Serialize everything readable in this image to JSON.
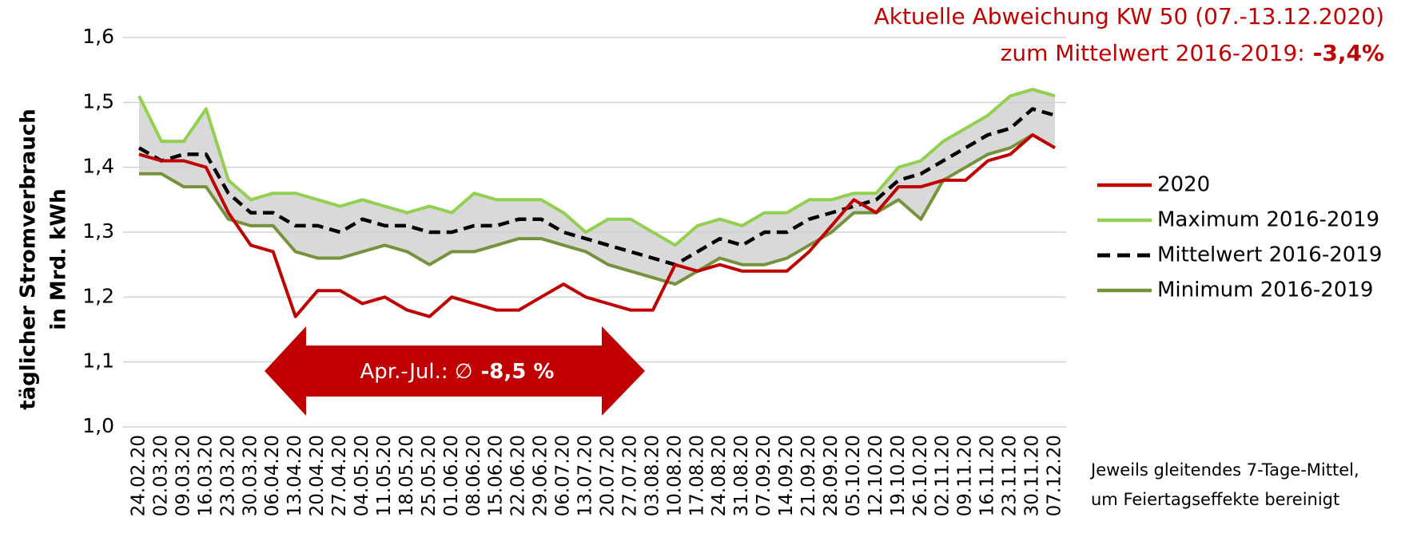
{
  "chart_data": {
    "type": "line",
    "title": [
      "Aktuelle Abweichung KW 50 (07.-13.12.2020)",
      "zum Mittelwert 2016-2019:",
      "-3,4%"
    ],
    "ylabel": [
      "täglicher Stromverbrauch",
      "in Mrd. kWh"
    ],
    "annotation": [
      "Apr.-Jul.: ∅",
      "-8,5 %"
    ],
    "note": [
      "Jeweils gleitendes 7-Tage-Mittel,",
      "um Feiertagseffekte bereinigt"
    ],
    "categories": [
      "24.02.20",
      "02.03.20",
      "09.03.20",
      "16.03.20",
      "23.03.20",
      "30.03.20",
      "06.04.20",
      "13.04.20",
      "20.04.20",
      "27.04.20",
      "04.05.20",
      "11.05.20",
      "18.05.20",
      "25.05.20",
      "01.06.20",
      "08.06.20",
      "15.06.20",
      "22.06.20",
      "29.06.20",
      "06.07.20",
      "13.07.20",
      "20.07.20",
      "27.07.20",
      "03.08.20",
      "10.08.20",
      "17.08.20",
      "24.08.20",
      "31.08.20",
      "07.09.20",
      "14.09.20",
      "21.09.20",
      "28.09.20",
      "05.10.20",
      "12.10.20",
      "19.10.20",
      "26.10.20",
      "02.11.20",
      "09.11.20",
      "16.11.20",
      "23.11.20",
      "30.11.20",
      "07.12.20"
    ],
    "series": [
      {
        "name": "2020",
        "color": "#c00000",
        "values": [
          1.42,
          1.41,
          1.41,
          1.4,
          1.33,
          1.28,
          1.27,
          1.17,
          1.21,
          1.21,
          1.19,
          1.2,
          1.18,
          1.17,
          1.2,
          1.19,
          1.18,
          1.18,
          1.2,
          1.22,
          1.2,
          1.19,
          1.18,
          1.18,
          1.25,
          1.24,
          1.25,
          1.24,
          1.24,
          1.24,
          1.27,
          1.31,
          1.35,
          1.33,
          1.37,
          1.37,
          1.38,
          1.38,
          1.41,
          1.42,
          1.45,
          1.43
        ]
      },
      {
        "name": "Maximum 2016-2019",
        "color": "#92d050",
        "values": [
          1.51,
          1.44,
          1.44,
          1.49,
          1.38,
          1.35,
          1.36,
          1.36,
          1.35,
          1.34,
          1.35,
          1.34,
          1.33,
          1.34,
          1.33,
          1.36,
          1.35,
          1.35,
          1.35,
          1.33,
          1.3,
          1.32,
          1.32,
          1.3,
          1.28,
          1.31,
          1.32,
          1.31,
          1.33,
          1.33,
          1.35,
          1.35,
          1.36,
          1.36,
          1.4,
          1.41,
          1.44,
          1.46,
          1.48,
          1.51,
          1.52,
          1.51
        ]
      },
      {
        "name": "Mittelwert 2016-2019",
        "color": "#000000",
        "dash": true,
        "values": [
          1.43,
          1.41,
          1.42,
          1.42,
          1.36,
          1.33,
          1.33,
          1.31,
          1.31,
          1.3,
          1.32,
          1.31,
          1.31,
          1.3,
          1.3,
          1.31,
          1.31,
          1.32,
          1.32,
          1.3,
          1.29,
          1.28,
          1.27,
          1.26,
          1.25,
          1.27,
          1.29,
          1.28,
          1.3,
          1.3,
          1.32,
          1.33,
          1.34,
          1.35,
          1.38,
          1.39,
          1.41,
          1.43,
          1.45,
          1.46,
          1.49,
          1.48
        ]
      },
      {
        "name": "Minimum 2016-2019",
        "color": "#76923c",
        "values": [
          1.39,
          1.39,
          1.37,
          1.37,
          1.32,
          1.31,
          1.31,
          1.27,
          1.26,
          1.26,
          1.27,
          1.28,
          1.27,
          1.25,
          1.27,
          1.27,
          1.28,
          1.29,
          1.29,
          1.28,
          1.27,
          1.25,
          1.24,
          1.23,
          1.22,
          1.24,
          1.26,
          1.25,
          1.25,
          1.26,
          1.28,
          1.3,
          1.33,
          1.33,
          1.35,
          1.32,
          1.38,
          1.4,
          1.42,
          1.43,
          1.45,
          1.43
        ]
      }
    ],
    "band": {
      "series": [
        1,
        3
      ],
      "color": "#d9d9d9"
    },
    "ylim": [
      1.0,
      1.6
    ],
    "yticks": [
      {
        "value": 1.0,
        "label": "1,0"
      },
      {
        "value": 1.1,
        "label": "1,1"
      },
      {
        "value": 1.2,
        "label": "1,2"
      },
      {
        "value": 1.3,
        "label": "1,3"
      },
      {
        "value": 1.4,
        "label": "1,4"
      },
      {
        "value": 1.5,
        "label": "1,5"
      },
      {
        "value": 1.6,
        "label": "1,6"
      }
    ],
    "grid": true,
    "legend": "right"
  }
}
